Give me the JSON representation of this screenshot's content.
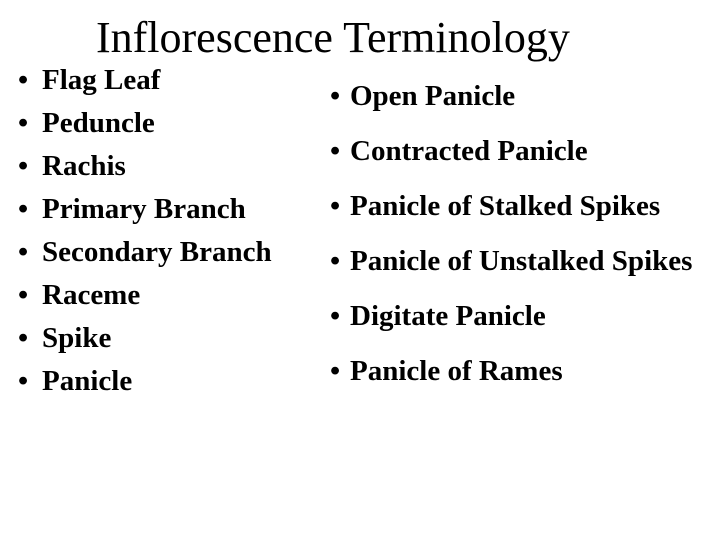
{
  "slide": {
    "title": "Inflorescence Terminology",
    "title_fontsize": 44,
    "body_fontsize": 29,
    "background_color": "#ffffff",
    "text_color": "#000000",
    "font_family": "Times New Roman",
    "bullet_char": "•",
    "left_column": {
      "items": [
        "Flag Leaf",
        "Peduncle",
        "Rachis",
        "Primary Branch",
        "Secondary Branch",
        "Raceme",
        "Spike",
        "Panicle"
      ]
    },
    "right_column": {
      "items": [
        "Open Panicle",
        "Contracted Panicle",
        "Panicle of Stalked Spikes",
        "Panicle of Unstalked Spikes",
        "Digitate Panicle",
        "Panicle of Rames"
      ]
    }
  }
}
